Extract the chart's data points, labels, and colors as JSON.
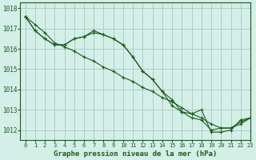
{
  "title": "Graphe pression niveau de la mer (hPa)",
  "background_color": "#d4eee8",
  "grid_color": "#b0ccc8",
  "line_color": "#1a5c1a",
  "xlim": [
    -0.5,
    23
  ],
  "ylim": [
    1011.5,
    1018.3
  ],
  "yticks": [
    1012,
    1013,
    1014,
    1015,
    1016,
    1017,
    1018
  ],
  "xticks": [
    0,
    1,
    2,
    3,
    4,
    5,
    6,
    7,
    8,
    9,
    10,
    11,
    12,
    13,
    14,
    15,
    16,
    17,
    18,
    19,
    20,
    21,
    22,
    23
  ],
  "series1": {
    "x": [
      0,
      1,
      2,
      3,
      4,
      5,
      6,
      7,
      8,
      9,
      10,
      11,
      12,
      13,
      14,
      15,
      16,
      17,
      18,
      19,
      20,
      21,
      22,
      23
    ],
    "y": [
      1017.6,
      1017.2,
      1016.8,
      1016.3,
      1016.1,
      1015.9,
      1015.6,
      1015.4,
      1015.1,
      1014.9,
      1014.6,
      1014.4,
      1014.1,
      1013.9,
      1013.6,
      1013.4,
      1013.1,
      1012.8,
      1012.6,
      1012.3,
      1012.1,
      1012.1,
      1012.3,
      1012.6
    ]
  },
  "series2": {
    "x": [
      0,
      1,
      2,
      3,
      4,
      5,
      6,
      7,
      8,
      9,
      10,
      11,
      12,
      13,
      14,
      15,
      16,
      17,
      18,
      19,
      20,
      21,
      22,
      23
    ],
    "y": [
      1017.6,
      1016.9,
      1016.5,
      1016.2,
      1016.2,
      1016.5,
      1016.6,
      1016.8,
      1016.7,
      1016.5,
      1016.2,
      1015.6,
      1014.9,
      1014.5,
      1013.9,
      1013.5,
      1012.9,
      1012.6,
      1012.5,
      1012.0,
      1012.1,
      1012.1,
      1012.4,
      1012.6
    ]
  },
  "series3": {
    "x": [
      0,
      1,
      2,
      3,
      4,
      5,
      6,
      7,
      8,
      9,
      10,
      11,
      12,
      13,
      14,
      15,
      16,
      17,
      18,
      19,
      20,
      21,
      22,
      23
    ],
    "y": [
      1017.6,
      1016.9,
      1016.5,
      1016.2,
      1016.2,
      1016.5,
      1016.6,
      1016.9,
      1016.7,
      1016.5,
      1016.2,
      1015.6,
      1014.9,
      1014.5,
      1013.9,
      1013.2,
      1012.9,
      1012.8,
      1013.0,
      1011.9,
      1011.9,
      1012.0,
      1012.5,
      1012.6
    ]
  }
}
